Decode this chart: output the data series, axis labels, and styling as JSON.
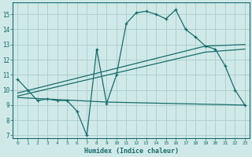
{
  "xlabel": "Humidex (Indice chaleur)",
  "background_color": "#cfe9e9",
  "grid_color": "#b0d0d0",
  "line_color": "#1a6b6b",
  "xlim": [
    -0.5,
    23.5
  ],
  "ylim": [
    6.8,
    15.8
  ],
  "yticks": [
    7,
    8,
    9,
    10,
    11,
    12,
    13,
    14,
    15
  ],
  "xticks": [
    0,
    1,
    2,
    3,
    4,
    5,
    6,
    7,
    8,
    9,
    10,
    11,
    12,
    13,
    14,
    15,
    16,
    17,
    18,
    19,
    20,
    21,
    22,
    23
  ],
  "series1_x": [
    0,
    1,
    2,
    3,
    4,
    5,
    6,
    7,
    8,
    9,
    10,
    11,
    12,
    13,
    14,
    15,
    16,
    17,
    18,
    19,
    20,
    21,
    22,
    23
  ],
  "series1_y": [
    10.7,
    10.0,
    9.3,
    9.4,
    9.3,
    9.3,
    8.6,
    7.0,
    12.7,
    9.1,
    11.0,
    14.4,
    15.1,
    15.2,
    15.0,
    14.7,
    15.3,
    14.0,
    13.5,
    12.9,
    12.7,
    11.6,
    10.0,
    9.0
  ],
  "series2_x": [
    0,
    9,
    23
  ],
  "series2_y": [
    9.5,
    9.2,
    9.0
  ],
  "series3_x": [
    0,
    19,
    23
  ],
  "series3_y": [
    9.8,
    12.9,
    13.0
  ],
  "series4_x": [
    0,
    19,
    23
  ],
  "series4_y": [
    9.6,
    12.5,
    12.7
  ]
}
